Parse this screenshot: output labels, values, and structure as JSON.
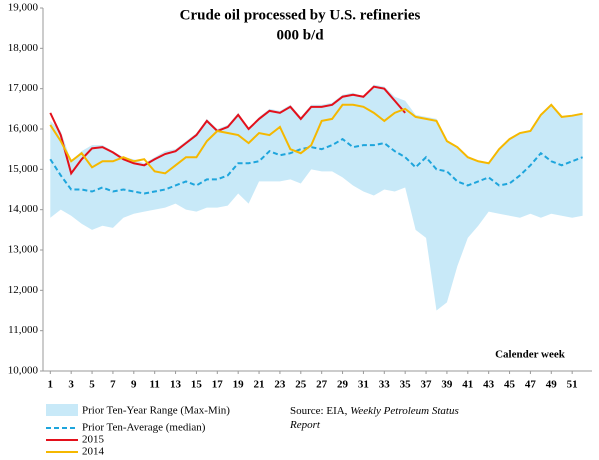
{
  "chart_data": {
    "type": "line",
    "title": "Crude oil processed by U.S. refineries",
    "subtitle": "000 b/d",
    "x_annotation": "Calender week",
    "source_prefix": "Source: EIA, ",
    "source_italic": "Weekly Petroleum Status Report",
    "x": [
      1,
      2,
      3,
      4,
      5,
      6,
      7,
      8,
      9,
      10,
      11,
      12,
      13,
      14,
      15,
      16,
      17,
      18,
      19,
      20,
      21,
      22,
      23,
      24,
      25,
      26,
      27,
      28,
      29,
      30,
      31,
      32,
      33,
      34,
      35,
      36,
      37,
      38,
      39,
      40,
      41,
      42,
      43,
      44,
      45,
      46,
      47,
      48,
      49,
      50,
      51,
      52
    ],
    "xlim": [
      0.3,
      52.9
    ],
    "xticks": [
      1,
      3,
      5,
      7,
      9,
      11,
      13,
      15,
      17,
      19,
      21,
      23,
      25,
      27,
      29,
      31,
      33,
      35,
      37,
      39,
      41,
      43,
      45,
      47,
      49,
      51
    ],
    "ylim": [
      10000,
      19000
    ],
    "yticks": [
      {
        "value": 10000,
        "label": "10,000"
      },
      {
        "value": 11000,
        "label": "11,000"
      },
      {
        "value": 12000,
        "label": "12,000"
      },
      {
        "value": 13000,
        "label": "13,000"
      },
      {
        "value": 14000,
        "label": "14,000"
      },
      {
        "value": 15000,
        "label": "15,000"
      },
      {
        "value": 16000,
        "label": "16,000"
      },
      {
        "value": 17000,
        "label": "17,000"
      },
      {
        "value": 18000,
        "label": "18,000"
      },
      {
        "value": 19000,
        "label": "19,000"
      }
    ],
    "band": {
      "name": "Prior Ten-Year Range (Max-Min)",
      "color": "#c8e9f8",
      "high": [
        16200,
        15950,
        15200,
        15450,
        15600,
        15600,
        15450,
        15300,
        15250,
        15150,
        15300,
        15450,
        15500,
        15700,
        15900,
        16250,
        16000,
        16100,
        16400,
        16000,
        16300,
        16500,
        16450,
        16600,
        16300,
        16600,
        16600,
        16650,
        16850,
        16900,
        16800,
        17100,
        17050,
        16800,
        16700,
        16350,
        16300,
        16250,
        15700,
        15550,
        15300,
        15200,
        15150,
        15500,
        15750,
        15900,
        15950,
        16350,
        16600,
        16300,
        16350,
        16400
      ],
      "low": [
        13800,
        14000,
        13850,
        13650,
        13500,
        13600,
        13550,
        13800,
        13900,
        13950,
        14000,
        14050,
        14150,
        14000,
        13950,
        14050,
        14050,
        14100,
        14400,
        14150,
        14700,
        14700,
        14700,
        14750,
        14650,
        15000,
        14950,
        14950,
        14800,
        14600,
        14450,
        14350,
        14500,
        14450,
        14550,
        13500,
        13300,
        11500,
        11700,
        12600,
        13300,
        13600,
        13950,
        13900,
        13850,
        13800,
        13900,
        13800,
        13900,
        13850,
        13800,
        13850
      ]
    },
    "series": [
      {
        "name": "Prior Ten-Average (median)",
        "color": "#1ea5dc",
        "dashed": true,
        "values": [
          15250,
          14850,
          14500,
          14500,
          14450,
          14550,
          14450,
          14500,
          14450,
          14400,
          14450,
          14500,
          14600,
          14700,
          14600,
          14750,
          14750,
          14850,
          15150,
          15150,
          15200,
          15450,
          15350,
          15400,
          15500,
          15550,
          15500,
          15600,
          15750,
          15550,
          15600,
          15600,
          15650,
          15450,
          15300,
          15050,
          15300,
          15000,
          14950,
          14700,
          14600,
          14700,
          14800,
          14600,
          14650,
          14850,
          15100,
          15400,
          15200,
          15100,
          15200,
          15300
        ]
      },
      {
        "name": "2015",
        "color": "#e3101b",
        "dashed": false,
        "values": [
          16400,
          15850,
          14900,
          15250,
          15520,
          15550,
          15420,
          15250,
          15150,
          15100,
          15250,
          15380,
          15450,
          15650,
          15850,
          16200,
          15950,
          16050,
          16350,
          16000,
          16250,
          16450,
          16400,
          16550,
          16250,
          16550,
          16550,
          16600,
          16800,
          16850,
          16800,
          17050,
          17000,
          16700,
          16400,
          null,
          null,
          null,
          null,
          null,
          null,
          null,
          null,
          null,
          null,
          null,
          null,
          null,
          null,
          null,
          null,
          null
        ]
      },
      {
        "name": "2014",
        "color": "#f5b800",
        "dashed": false,
        "values": [
          16100,
          15700,
          15200,
          15400,
          15050,
          15200,
          15200,
          15300,
          15200,
          15250,
          14950,
          14900,
          15100,
          15300,
          15300,
          15700,
          15950,
          15900,
          15850,
          15650,
          15900,
          15850,
          16050,
          15500,
          15400,
          15600,
          16200,
          16250,
          16600,
          16600,
          16550,
          16400,
          16200,
          16400,
          16500,
          16300,
          16250,
          16200,
          15700,
          15550,
          15300,
          15200,
          15150,
          15500,
          15750,
          15900,
          15950,
          16350,
          16600,
          16300,
          16330,
          16380
        ]
      }
    ]
  }
}
